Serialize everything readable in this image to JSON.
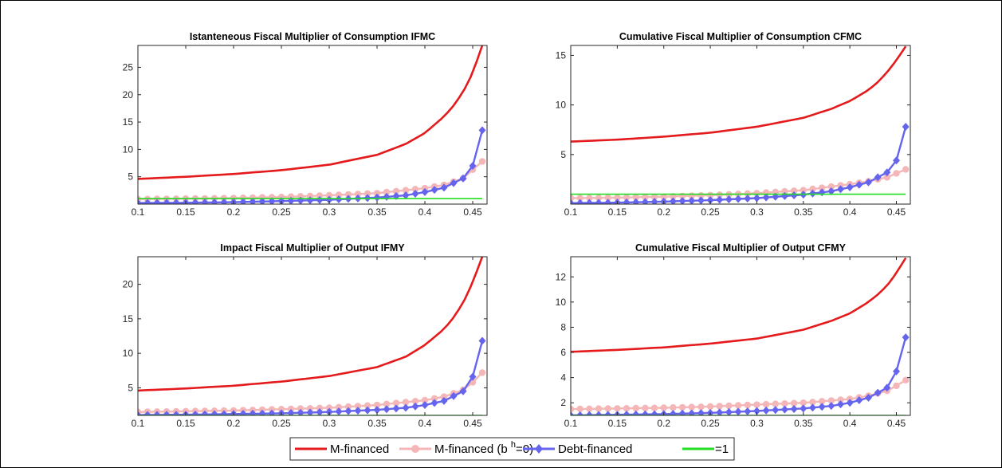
{
  "colors": {
    "m_financed": "#e41a1c",
    "m_financed_bh0": "#f4b6b6",
    "debt_financed": "#6464ee",
    "one_line": "#22dd22",
    "axis": "#262626"
  },
  "legend": {
    "items": [
      {
        "label": "M-financed",
        "key": "m_financed"
      },
      {
        "label_pre": "M-financed (b ",
        "label_sup": "h",
        "label_post": "=0)",
        "key": "m_financed_bh0"
      },
      {
        "label": "Debt-financed",
        "key": "debt_financed"
      },
      {
        "label": "=1",
        "key": "one_line"
      }
    ]
  },
  "chart_data": [
    {
      "type": "line",
      "title": "Istanteneous Fiscal Multiplier of Consumption IFMC",
      "xlim": [
        0.1,
        0.465
      ],
      "ylim": [
        0,
        29
      ],
      "xticks": [
        0.1,
        0.15,
        0.2,
        0.25,
        0.3,
        0.35,
        0.4,
        0.45
      ],
      "xtick_labels": [
        "0.1",
        "0.15",
        "0.2",
        "0.25",
        "0.3",
        "0.35",
        "0.4",
        "0.45"
      ],
      "yticks": [
        5,
        10,
        15,
        20,
        25
      ],
      "ytick_labels": [
        "5",
        "10",
        "15",
        "20",
        "25"
      ],
      "series": [
        {
          "name": "M-financed",
          "x": [
            0.1,
            0.15,
            0.2,
            0.25,
            0.3,
            0.35,
            0.38,
            0.4,
            0.42,
            0.43,
            0.44,
            0.45,
            0.46
          ],
          "y": [
            4.6,
            5.0,
            5.5,
            6.2,
            7.2,
            9.0,
            11.0,
            13.0,
            16.0,
            18.0,
            20.5,
            24.0,
            29.0
          ]
        },
        {
          "name": "M-financed (b h=0)",
          "x": [
            0.1,
            0.15,
            0.2,
            0.25,
            0.3,
            0.35,
            0.4,
            0.42,
            0.44,
            0.45,
            0.46
          ],
          "y": [
            0.9,
            1.0,
            1.1,
            1.3,
            1.6,
            2.0,
            2.9,
            3.5,
            4.7,
            6.3,
            7.8
          ]
        },
        {
          "name": "Debt-financed",
          "x": [
            0.1,
            0.15,
            0.2,
            0.25,
            0.3,
            0.35,
            0.38,
            0.4,
            0.42,
            0.44,
            0.45,
            0.46
          ],
          "y": [
            0.2,
            0.25,
            0.35,
            0.55,
            0.8,
            1.2,
            1.6,
            2.2,
            3.0,
            4.7,
            7.0,
            13.5
          ]
        },
        {
          "name": "=1",
          "x": [
            0.1,
            0.46
          ],
          "y": [
            1,
            1
          ]
        }
      ]
    },
    {
      "type": "line",
      "title": "Cumulative Fiscal Multiplier of Consumption CFMC",
      "xlim": [
        0.1,
        0.465
      ],
      "ylim": [
        0,
        16
      ],
      "xticks": [
        0.1,
        0.15,
        0.2,
        0.25,
        0.3,
        0.35,
        0.4,
        0.45
      ],
      "xtick_labels": [
        "0.1",
        "0.15",
        "0.2",
        "0.25",
        "0.3",
        "0.35",
        "0.4",
        "0.45"
      ],
      "yticks": [
        5,
        10,
        15
      ],
      "ytick_labels": [
        "5",
        "10",
        "15"
      ],
      "series": [
        {
          "name": "M-financed",
          "x": [
            0.1,
            0.15,
            0.2,
            0.25,
            0.3,
            0.35,
            0.38,
            0.4,
            0.42,
            0.43,
            0.44,
            0.45,
            0.46
          ],
          "y": [
            6.3,
            6.5,
            6.8,
            7.2,
            7.8,
            8.7,
            9.6,
            10.4,
            11.5,
            12.3,
            13.3,
            14.5,
            15.9
          ]
        },
        {
          "name": "M-financed (b h=0)",
          "x": [
            0.1,
            0.15,
            0.2,
            0.25,
            0.3,
            0.35,
            0.4,
            0.42,
            0.44,
            0.45,
            0.46
          ],
          "y": [
            0.6,
            0.65,
            0.75,
            0.9,
            1.1,
            1.4,
            2.0,
            2.3,
            2.7,
            3.1,
            3.5
          ]
        },
        {
          "name": "Debt-financed",
          "x": [
            0.1,
            0.15,
            0.2,
            0.25,
            0.3,
            0.35,
            0.38,
            0.4,
            0.42,
            0.44,
            0.45,
            0.46
          ],
          "y": [
            0.1,
            0.15,
            0.25,
            0.4,
            0.6,
            0.95,
            1.3,
            1.7,
            2.2,
            3.2,
            4.4,
            7.8
          ]
        },
        {
          "name": "=1",
          "x": [
            0.1,
            0.46
          ],
          "y": [
            1,
            1
          ]
        }
      ]
    },
    {
      "type": "line",
      "title": "Impact Fiscal Multiplier of Output IFMY",
      "xlim": [
        0.1,
        0.465
      ],
      "ylim": [
        1,
        24
      ],
      "xticks": [
        0.1,
        0.15,
        0.2,
        0.25,
        0.3,
        0.35,
        0.4,
        0.45
      ],
      "xtick_labels": [
        "0.1",
        "0.15",
        "0.2",
        "0.25",
        "0.3",
        "0.35",
        "0.4",
        "0.45"
      ],
      "yticks": [
        5,
        10,
        15,
        20
      ],
      "ytick_labels": [
        "5",
        "10",
        "15",
        "20"
      ],
      "series": [
        {
          "name": "M-financed",
          "x": [
            0.1,
            0.15,
            0.2,
            0.25,
            0.3,
            0.35,
            0.38,
            0.4,
            0.42,
            0.43,
            0.44,
            0.45,
            0.46
          ],
          "y": [
            4.6,
            4.9,
            5.3,
            5.9,
            6.7,
            8.0,
            9.5,
            11.2,
            13.5,
            15.2,
            17.3,
            20.3,
            24.0
          ]
        },
        {
          "name": "M-financed (b h=0)",
          "x": [
            0.1,
            0.15,
            0.2,
            0.25,
            0.3,
            0.35,
            0.4,
            0.42,
            0.44,
            0.45,
            0.46
          ],
          "y": [
            1.5,
            1.6,
            1.7,
            1.9,
            2.1,
            2.5,
            3.2,
            3.7,
            4.7,
            5.8,
            7.2
          ]
        },
        {
          "name": "Debt-financed",
          "x": [
            0.1,
            0.15,
            0.2,
            0.25,
            0.3,
            0.35,
            0.38,
            0.4,
            0.42,
            0.44,
            0.45,
            0.46
          ],
          "y": [
            1.05,
            1.1,
            1.2,
            1.3,
            1.5,
            1.8,
            2.1,
            2.5,
            3.1,
            4.5,
            6.6,
            11.8
          ]
        },
        {
          "name": "=1",
          "x": [
            0.1,
            0.46
          ],
          "y": [
            1,
            1
          ]
        }
      ]
    },
    {
      "type": "line",
      "title": "Cumulative Fiscal Multiplier of Output CFMY",
      "xlim": [
        0.1,
        0.465
      ],
      "ylim": [
        1,
        13.6
      ],
      "xticks": [
        0.1,
        0.15,
        0.2,
        0.25,
        0.3,
        0.35,
        0.4,
        0.45
      ],
      "xtick_labels": [
        "0.1",
        "0.15",
        "0.2",
        "0.25",
        "0.3",
        "0.35",
        "0.4",
        "0.45"
      ],
      "yticks": [
        2,
        4,
        6,
        8,
        10,
        12
      ],
      "ytick_labels": [
        "2",
        "4",
        "6",
        "8",
        "10",
        "12"
      ],
      "series": [
        {
          "name": "M-financed",
          "x": [
            0.1,
            0.15,
            0.2,
            0.25,
            0.3,
            0.35,
            0.38,
            0.4,
            0.42,
            0.43,
            0.44,
            0.45,
            0.46
          ],
          "y": [
            6.05,
            6.2,
            6.4,
            6.7,
            7.1,
            7.8,
            8.5,
            9.1,
            10.0,
            10.6,
            11.3,
            12.3,
            13.5
          ]
        },
        {
          "name": "M-financed (b h=0)",
          "x": [
            0.1,
            0.15,
            0.2,
            0.25,
            0.3,
            0.35,
            0.4,
            0.42,
            0.44,
            0.45,
            0.46
          ],
          "y": [
            1.5,
            1.55,
            1.6,
            1.7,
            1.85,
            2.0,
            2.3,
            2.55,
            2.95,
            3.35,
            3.8
          ]
        },
        {
          "name": "Debt-financed",
          "x": [
            0.1,
            0.15,
            0.2,
            0.25,
            0.3,
            0.35,
            0.38,
            0.4,
            0.42,
            0.44,
            0.45,
            0.46
          ],
          "y": [
            1.0,
            1.05,
            1.1,
            1.2,
            1.35,
            1.55,
            1.75,
            2.0,
            2.4,
            3.2,
            4.5,
            7.2
          ]
        },
        {
          "name": "=1",
          "x": [
            0.1,
            0.46
          ],
          "y": [
            1,
            1
          ]
        }
      ]
    }
  ]
}
